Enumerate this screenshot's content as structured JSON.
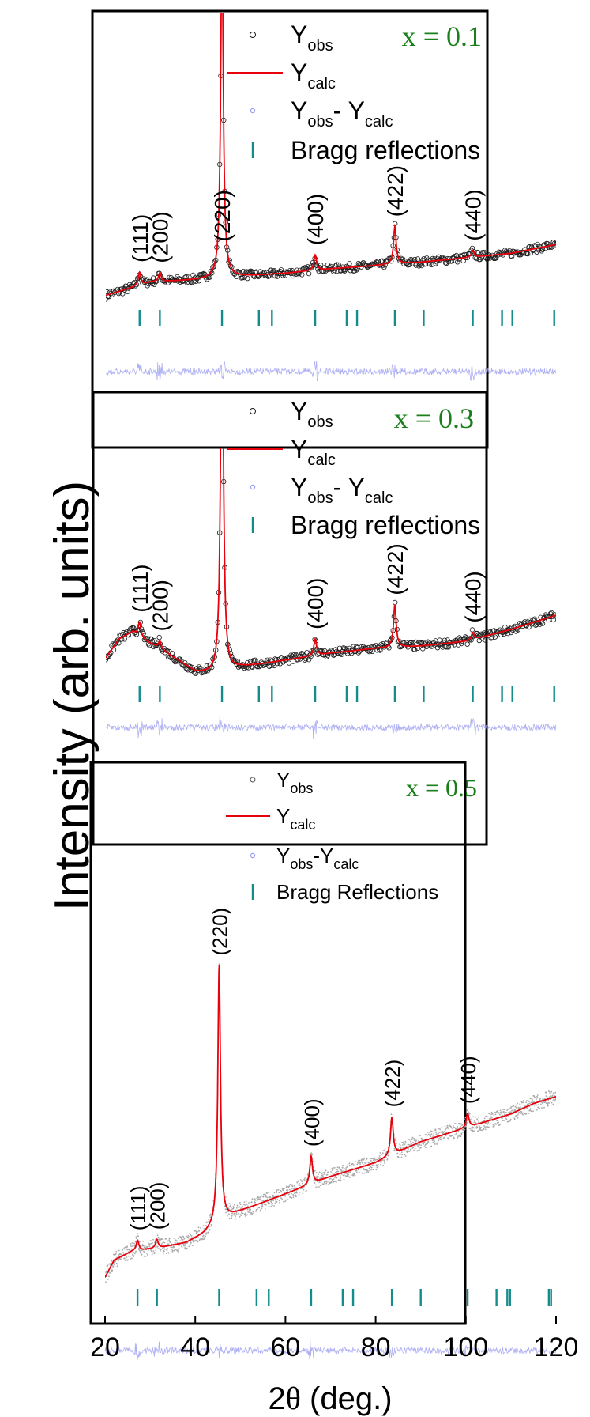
{
  "figure": {
    "ylabel": "Intensity (arb. units)",
    "xlabel_prefix": "2",
    "xlabel_symbol": "θ",
    "xlabel_suffix": " (deg.)"
  },
  "chart_data": [
    {
      "type": "scatter",
      "xlim": [
        20,
        120
      ],
      "sample_label": "x = 0.1",
      "legend": [
        {
          "marker": "open-circle",
          "text": "Y",
          "sub": "obs"
        },
        {
          "marker": "line",
          "text": "Y",
          "sub": "calc"
        },
        {
          "marker": "small-circle",
          "text": "Y",
          "sub": "obs",
          "text2": "- Y",
          "sub2": "calc"
        },
        {
          "marker": "tick",
          "text": "Bragg reflections"
        }
      ],
      "background": [
        [
          20,
          3
        ],
        [
          25,
          6
        ],
        [
          30,
          9
        ],
        [
          35,
          9.5
        ],
        [
          40,
          10
        ],
        [
          50,
          11.5
        ],
        [
          60,
          13
        ],
        [
          70,
          15
        ],
        [
          80,
          16.5
        ],
        [
          90,
          18
        ],
        [
          100,
          20
        ],
        [
          110,
          22
        ],
        [
          120,
          26
        ]
      ],
      "peaks": [
        {
          "x": 27.5,
          "height": 6,
          "label": "(111)"
        },
        {
          "x": 32,
          "height": 4,
          "label": "(200)"
        },
        {
          "x": 45.8,
          "height": 152,
          "label": "(220)"
        },
        {
          "x": 66.5,
          "height": 7,
          "label": "(400)"
        },
        {
          "x": 84.2,
          "height": 17,
          "label": "(422)"
        },
        {
          "x": 101.5,
          "height": 3,
          "label": "(440)"
        }
      ],
      "bragg_positions": [
        27.5,
        32,
        45.8,
        54,
        56.9,
        66.5,
        73.5,
        75.8,
        84.2,
        90.6,
        101.5,
        108,
        110.3,
        119.6
      ]
    },
    {
      "type": "scatter",
      "xlim": [
        20,
        120
      ],
      "sample_label": "x = 0.3",
      "legend": [
        {
          "marker": "open-circle",
          "text": "Y",
          "sub": "obs"
        },
        {
          "marker": "line",
          "text": "Y",
          "sub": "calc"
        },
        {
          "marker": "small-circle",
          "text": "Y",
          "sub": "obs",
          "text2": "- Y",
          "sub2": "calc"
        },
        {
          "marker": "tick",
          "text": "Bragg reflections"
        }
      ],
      "background": [
        [
          20,
          10
        ],
        [
          23,
          18
        ],
        [
          26,
          21
        ],
        [
          29,
          17
        ],
        [
          32,
          14
        ],
        [
          36,
          9
        ],
        [
          40,
          4
        ],
        [
          45,
          3
        ],
        [
          50,
          6
        ],
        [
          60,
          9
        ],
        [
          70,
          12
        ],
        [
          80,
          14
        ],
        [
          90,
          15
        ],
        [
          100,
          17
        ],
        [
          110,
          22
        ],
        [
          120,
          28
        ]
      ],
      "peaks": [
        {
          "x": 27.5,
          "height": 6,
          "label": "(111)"
        },
        {
          "x": 32,
          "height": 3,
          "label": "(200)"
        },
        {
          "x": 45.8,
          "height": 178,
          "label": "(220)"
        },
        {
          "x": 66.5,
          "height": 7,
          "label": "(400)"
        },
        {
          "x": 84.2,
          "height": 18,
          "label": "(422)"
        },
        {
          "x": 101.5,
          "height": 3,
          "label": "(440)"
        }
      ],
      "bragg_positions": [
        27.5,
        32,
        45.8,
        54,
        56.9,
        66.5,
        73.5,
        75.8,
        84.2,
        90.6,
        101.5,
        108,
        110.3,
        119.6
      ]
    },
    {
      "type": "scatter",
      "xlim": [
        20,
        120
      ],
      "xticks": [
        20,
        40,
        60,
        80,
        100,
        120
      ],
      "sample_label": "x = 0.5",
      "legend": [
        {
          "marker": "dot",
          "text": "Y",
          "sub": "obs"
        },
        {
          "marker": "line",
          "text": "Y",
          "sub": "calc"
        },
        {
          "marker": "small-circle",
          "text": "Y",
          "sub": "obs",
          "text2": "-Y",
          "sub2": "calc"
        },
        {
          "marker": "tick",
          "text": "Bragg Reflections"
        }
      ],
      "background": [
        [
          20,
          2
        ],
        [
          22,
          12
        ],
        [
          26,
          17
        ],
        [
          32,
          19
        ],
        [
          38,
          22
        ],
        [
          42,
          27
        ],
        [
          46,
          35
        ],
        [
          50,
          40
        ],
        [
          55,
          45
        ],
        [
          60,
          50
        ],
        [
          65,
          55
        ],
        [
          70,
          60
        ],
        [
          75,
          64
        ],
        [
          80,
          68
        ],
        [
          85,
          74
        ],
        [
          90,
          80
        ],
        [
          95,
          84
        ],
        [
          100,
          88
        ],
        [
          105,
          92
        ],
        [
          110,
          96
        ],
        [
          115,
          102
        ],
        [
          120,
          106
        ]
      ],
      "peaks": [
        {
          "x": 27.2,
          "height": 6,
          "label": "(111)"
        },
        {
          "x": 31.5,
          "height": 5,
          "label": "(200)"
        },
        {
          "x": 45.3,
          "height": 148,
          "label": "(220)"
        },
        {
          "x": 65.7,
          "height": 16,
          "label": "(400)"
        },
        {
          "x": 83.6,
          "height": 22,
          "label": "(422)"
        },
        {
          "x": 100.4,
          "height": 8,
          "label": "(440)"
        }
      ],
      "bragg_positions": [
        27.2,
        31.5,
        45.3,
        53.6,
        56.3,
        65.7,
        72.7,
        75,
        83.6,
        90,
        100.4,
        106.8,
        109.2,
        109.8,
        118.4,
        118.9
      ]
    }
  ],
  "colors": {
    "observed": "#1a1a1a",
    "observed_x05": "#a9a9a9",
    "calculated": "#e8000b",
    "difference": "#9a9cf0",
    "bragg": "#138c8c",
    "sample_label": "#1a7f1a",
    "axis": "#000000"
  }
}
